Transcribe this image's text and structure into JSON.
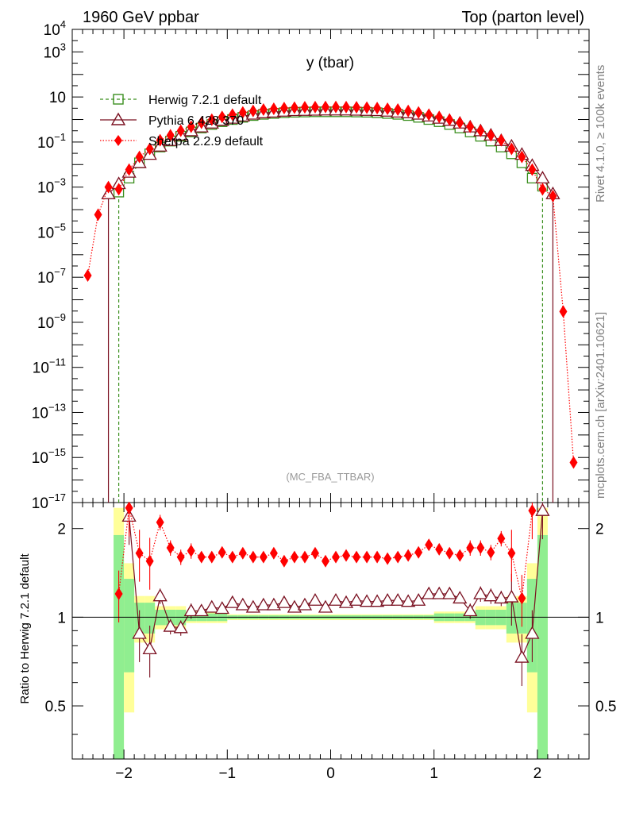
{
  "header": {
    "left": "1960 GeV ppbar",
    "right": "Top (parton level)"
  },
  "side": {
    "rivet": "Rivet 4.1.0, ≥ 100k events",
    "mcplots": "mcplots.cern.ch [arXiv:2401.10621]"
  },
  "chart_data": [
    {
      "type": "scatter",
      "panel": "main",
      "title": "y (tbar)",
      "watermark": "(MC_FBA_TTBAR)",
      "ylabel": "",
      "yscale": "log",
      "xlim": [
        -2.5,
        2.5
      ],
      "ylim": [
        1e-17,
        10000.0
      ],
      "y_ticks": [
        "10^4",
        "10^3",
        "10",
        "10^-1",
        "10^-3",
        "10^-5",
        "10^-7",
        "10^-9",
        "10^-11",
        "10^-13",
        "10^-15",
        "10^-17"
      ],
      "legend": {
        "herwig": "Herwig 7.2.1 default",
        "pythia": "Pythia 6.428 370",
        "sherpa": "Sherpa 2.2.9 default"
      },
      "colors": {
        "herwig": "#3a8f1e",
        "pythia": "#7a1020",
        "sherpa": "#ff0000"
      },
      "series": [
        {
          "name": "Herwig 7.2.1 default",
          "x": [
            -2.05,
            -1.95,
            -1.85,
            -1.75,
            -1.65,
            -1.55,
            -1.45,
            -1.35,
            -1.25,
            -1.15,
            -1.05,
            -0.95,
            -0.85,
            -0.75,
            -0.65,
            -0.55,
            -0.45,
            -0.35,
            -0.25,
            -0.15,
            -0.05,
            0.05,
            0.15,
            0.25,
            0.35,
            0.45,
            0.55,
            0.65,
            0.75,
            0.85,
            0.95,
            1.05,
            1.15,
            1.25,
            1.35,
            1.45,
            1.55,
            1.65,
            1.75,
            1.85,
            1.95,
            2.05
          ],
          "y": [
            0.0006,
            0.0025,
            0.012,
            0.03,
            0.06,
            0.11,
            0.18,
            0.28,
            0.42,
            0.6,
            0.8,
            1.0,
            1.25,
            1.5,
            1.7,
            1.85,
            2.0,
            2.1,
            2.15,
            2.2,
            2.2,
            2.2,
            2.2,
            2.15,
            2.1,
            2.0,
            1.85,
            1.7,
            1.5,
            1.25,
            1.0,
            0.8,
            0.6,
            0.42,
            0.28,
            0.18,
            0.11,
            0.06,
            0.03,
            0.012,
            0.0025,
            0.0011
          ]
        },
        {
          "name": "Pythia 6.428 370",
          "x": [
            -2.15,
            -2.05,
            -1.95,
            -1.85,
            -1.75,
            -1.65,
            -1.55,
            -1.45,
            -1.35,
            -1.25,
            -1.15,
            -1.05,
            -0.95,
            -0.85,
            -0.75,
            -0.65,
            -0.55,
            -0.45,
            -0.35,
            -0.25,
            -0.15,
            -0.05,
            0.05,
            0.15,
            0.25,
            0.35,
            0.45,
            0.55,
            0.65,
            0.75,
            0.85,
            0.95,
            1.05,
            1.15,
            1.25,
            1.35,
            1.45,
            1.55,
            1.65,
            1.75,
            1.85,
            1.95,
            2.05,
            2.15
          ],
          "y": [
            0.0005,
            0.0014,
            0.0045,
            0.012,
            0.028,
            0.065,
            0.115,
            0.2,
            0.31,
            0.46,
            0.68,
            0.9,
            1.12,
            1.4,
            1.7,
            1.95,
            2.1,
            2.3,
            2.45,
            2.5,
            2.55,
            2.6,
            2.6,
            2.6,
            2.55,
            2.5,
            2.45,
            2.3,
            2.1,
            1.95,
            1.7,
            1.4,
            1.12,
            0.9,
            0.68,
            0.46,
            0.31,
            0.2,
            0.115,
            0.065,
            0.028,
            0.009,
            0.0025,
            0.0005
          ]
        },
        {
          "name": "Sherpa 2.2.9 default",
          "x": [
            -2.35,
            -2.25,
            -2.15,
            -2.05,
            -1.95,
            -1.85,
            -1.75,
            -1.65,
            -1.55,
            -1.45,
            -1.35,
            -1.25,
            -1.15,
            -1.05,
            -0.95,
            -0.85,
            -0.75,
            -0.65,
            -0.55,
            -0.45,
            -0.35,
            -0.25,
            -0.15,
            -0.05,
            0.05,
            0.15,
            0.25,
            0.35,
            0.45,
            0.55,
            0.65,
            0.75,
            0.85,
            0.95,
            1.05,
            1.15,
            1.25,
            1.35,
            1.45,
            1.55,
            1.65,
            1.75,
            1.85,
            1.95,
            2.05,
            2.15,
            2.25,
            2.35
          ],
          "y": [
            1.2e-07,
            6e-05,
            0.001,
            0.0008,
            0.006,
            0.022,
            0.05,
            0.12,
            0.2,
            0.32,
            0.48,
            0.72,
            0.98,
            1.3,
            1.65,
            2.05,
            2.4,
            2.75,
            3.0,
            3.2,
            3.35,
            3.5,
            3.55,
            3.6,
            3.6,
            3.55,
            3.5,
            3.35,
            3.2,
            3.0,
            2.75,
            2.4,
            2.05,
            1.65,
            1.3,
            0.98,
            0.72,
            0.48,
            0.32,
            0.2,
            0.12,
            0.05,
            0.022,
            0.006,
            0.0008,
            0.0004,
            3e-09,
            6e-16
          ]
        }
      ]
    },
    {
      "type": "scatter",
      "panel": "ratio",
      "ylabel": "Ratio to Herwig 7.2.1 default",
      "yscale": "log",
      "xlim": [
        -2.5,
        2.5
      ],
      "ylim": [
        0.33,
        2.45
      ],
      "x_ticks": [
        "−2",
        "−1",
        "0",
        "1",
        "2"
      ],
      "y_ticks": [
        "0.5",
        "1",
        "2"
      ],
      "series": [
        {
          "name": "Pythia 6.428 370",
          "x": [
            -1.95,
            -1.85,
            -1.75,
            -1.65,
            -1.55,
            -1.45,
            -1.35,
            -1.25,
            -1.15,
            -1.05,
            -0.95,
            -0.85,
            -0.75,
            -0.65,
            -0.55,
            -0.45,
            -0.35,
            -0.25,
            -0.15,
            -0.05,
            0.05,
            0.15,
            0.25,
            0.35,
            0.45,
            0.55,
            0.65,
            0.75,
            0.85,
            0.95,
            1.05,
            1.15,
            1.25,
            1.35,
            1.45,
            1.55,
            1.65,
            1.75,
            1.85,
            1.95,
            2.05
          ],
          "y": [
            2.2,
            0.88,
            0.78,
            1.18,
            0.93,
            0.92,
            1.05,
            1.05,
            1.08,
            1.07,
            1.12,
            1.1,
            1.08,
            1.1,
            1.1,
            1.12,
            1.08,
            1.1,
            1.14,
            1.08,
            1.14,
            1.12,
            1.14,
            1.13,
            1.13,
            1.14,
            1.14,
            1.13,
            1.14,
            1.2,
            1.2,
            1.2,
            1.16,
            1.05,
            1.2,
            1.18,
            1.16,
            1.17,
            0.73,
            0.88,
            2.3
          ]
        },
        {
          "name": "Sherpa 2.2.9 default",
          "x": [
            -2.05,
            -1.95,
            -1.85,
            -1.75,
            -1.65,
            -1.55,
            -1.45,
            -1.35,
            -1.25,
            -1.15,
            -1.05,
            -0.95,
            -0.85,
            -0.75,
            -0.65,
            -0.55,
            -0.45,
            -0.35,
            -0.25,
            -0.15,
            -0.05,
            0.05,
            0.15,
            0.25,
            0.35,
            0.45,
            0.55,
            0.65,
            0.75,
            0.85,
            0.95,
            1.05,
            1.15,
            1.25,
            1.35,
            1.45,
            1.55,
            1.65,
            1.75,
            1.85,
            1.95
          ],
          "y": [
            1.2,
            2.35,
            1.65,
            1.55,
            2.1,
            1.72,
            1.6,
            1.68,
            1.6,
            1.6,
            1.66,
            1.6,
            1.65,
            1.6,
            1.6,
            1.65,
            1.55,
            1.6,
            1.6,
            1.65,
            1.55,
            1.6,
            1.62,
            1.6,
            1.6,
            1.6,
            1.58,
            1.6,
            1.62,
            1.66,
            1.76,
            1.7,
            1.65,
            1.62,
            1.72,
            1.72,
            1.66,
            1.85,
            1.65,
            1.16,
            2.3
          ]
        }
      ]
    }
  ]
}
